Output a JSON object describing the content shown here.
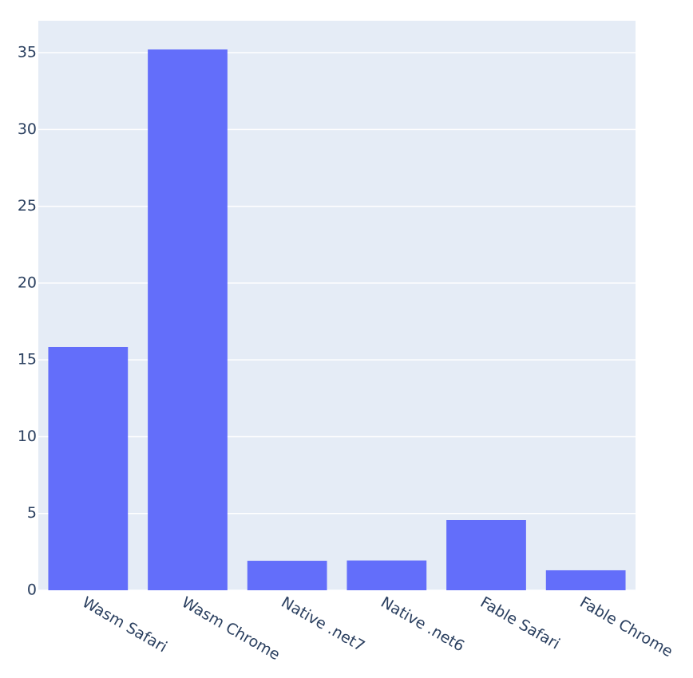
{
  "chart_data": {
    "type": "bar",
    "categories": [
      "Wasm Safari",
      "Wasm Chrome",
      "Native .net7",
      "Native .net6",
      "Fable Safari",
      "Fable Chrome"
    ],
    "values": [
      15.84,
      35.21,
      1.92,
      1.94,
      4.57,
      1.3
    ],
    "color": "#636efa",
    "ylim": [
      0,
      37.08
    ],
    "yticks": [
      0,
      5,
      10,
      15,
      20,
      25,
      30,
      35
    ],
    "grid": true
  }
}
